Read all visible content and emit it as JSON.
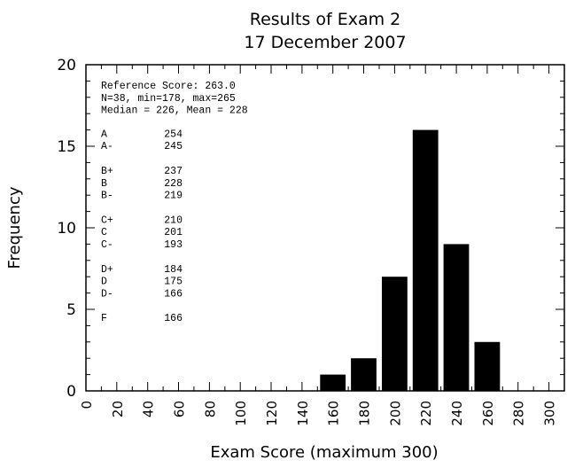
{
  "chart_data": {
    "type": "bar",
    "title": "Results of Exam 2",
    "subtitle": "17 December 2007",
    "xlabel": "Exam Score (maximum 300)",
    "ylabel": "Frequency",
    "xlim": [
      0,
      310
    ],
    "ylim": [
      0,
      20
    ],
    "x_ticks": [
      "0",
      "20",
      "40",
      "60",
      "80",
      "100",
      "120",
      "140",
      "160",
      "180",
      "200",
      "220",
      "240",
      "260",
      "280",
      "300"
    ],
    "y_ticks": [
      "0",
      "5",
      "10",
      "15",
      "20"
    ],
    "bin_width": 20,
    "x": [
      160,
      180,
      200,
      220,
      240,
      260
    ],
    "values": [
      1,
      2,
      7,
      16,
      9,
      3
    ],
    "grid": false,
    "bar_color": "#000000"
  },
  "annotation": {
    "stats": [
      "Reference Score: 263.0",
      "N=38, min=178, max=265",
      "Median = 226, Mean = 228"
    ],
    "grade_groups": [
      [
        {
          "grade": "A",
          "cutoff": "254"
        },
        {
          "grade": "A-",
          "cutoff": "245"
        }
      ],
      [
        {
          "grade": "B+",
          "cutoff": "237"
        },
        {
          "grade": "B",
          "cutoff": "228"
        },
        {
          "grade": "B-",
          "cutoff": "219"
        }
      ],
      [
        {
          "grade": "C+",
          "cutoff": "210"
        },
        {
          "grade": "C",
          "cutoff": "201"
        },
        {
          "grade": "C-",
          "cutoff": "193"
        }
      ],
      [
        {
          "grade": "D+",
          "cutoff": "184"
        },
        {
          "grade": "D",
          "cutoff": "175"
        },
        {
          "grade": "D-",
          "cutoff": "166"
        }
      ],
      [
        {
          "grade": "F",
          "cutoff": "166"
        }
      ]
    ]
  }
}
